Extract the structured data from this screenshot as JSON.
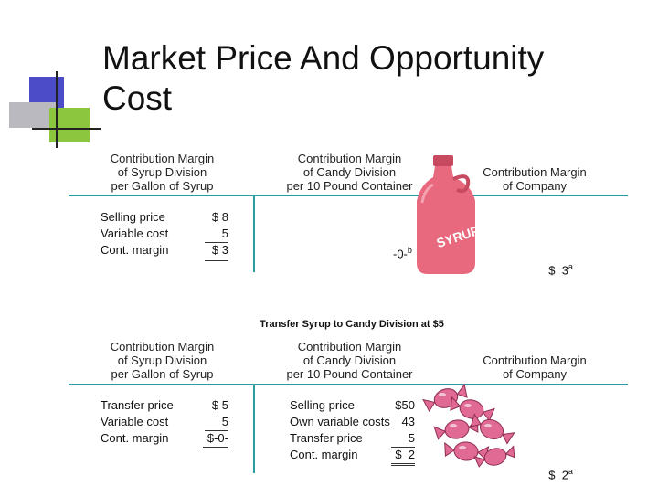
{
  "slide": {
    "title_line1": "Market Price And Opportunity",
    "title_line2": "Cost"
  },
  "top_table": {
    "headers": {
      "syrup": [
        "Contribution Margin",
        "of Syrup Division",
        "per Gallon of Syrup"
      ],
      "candy": [
        "Contribution Margin",
        "of Candy Division",
        "per 10 Pound Container"
      ],
      "company": [
        "Contribution Margin",
        "of Company"
      ]
    },
    "syrup_rows": [
      {
        "label": "Selling price",
        "value": "$ 8"
      },
      {
        "label": "Variable cost",
        "value": "5"
      },
      {
        "label": "Cont. margin",
        "value": "$ 3"
      }
    ],
    "candy_value": "-0-",
    "candy_sup": "b",
    "company_value": "$  3",
    "company_sup": "a"
  },
  "jug": {
    "label": "SYRUP",
    "color": "#e8687e"
  },
  "section_title": "Transfer Syrup to Candy Division at $5",
  "bottom_table": {
    "headers": {
      "syrup": [
        "Contribution Margin",
        "of Syrup Division",
        "per Gallon of Syrup"
      ],
      "candy": [
        "Contribution Margin",
        "of Candy Division",
        "per 10 Pound Container"
      ],
      "company": [
        "Contribution Margin",
        "of Company"
      ]
    },
    "syrup_rows": [
      {
        "label": "Transfer price",
        "value": "$ 5"
      },
      {
        "label": "Variable cost",
        "value": "5"
      },
      {
        "label": "Cont. margin",
        "value": "$-0-"
      }
    ],
    "candy_rows": [
      {
        "label": "Selling price",
        "value": "$50"
      },
      {
        "label": "Own variable costs",
        "value": "43"
      },
      {
        "label": "Transfer price",
        "value": "5"
      },
      {
        "label": "Cont. margin",
        "value": "$  2"
      }
    ],
    "company_value": "$  2",
    "company_sup": "a"
  },
  "colors": {
    "accent_teal": "#2a9da0",
    "candy_pink": "#e06a93",
    "deco_blue": "#4c4cc8",
    "deco_green": "#8cc63e"
  }
}
